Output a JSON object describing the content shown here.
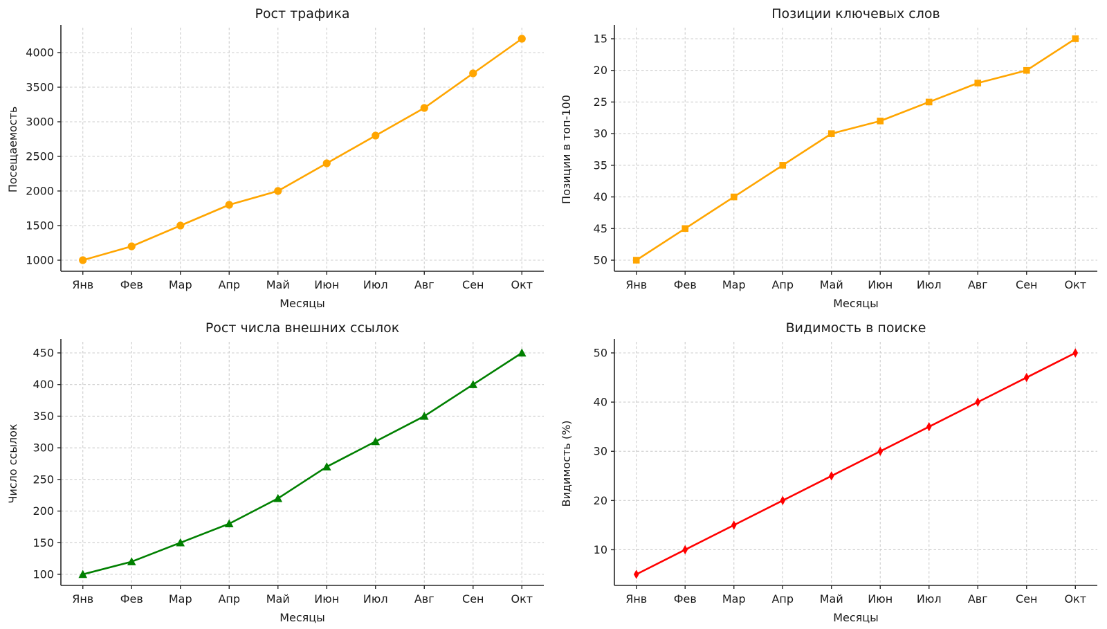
{
  "page": {
    "background": "#ffffff",
    "layout": "2x2-grid"
  },
  "chart_data": [
    {
      "id": "traffic-growth",
      "type": "line",
      "title": "Рост трафика",
      "xlabel": "Месяцы",
      "ylabel": "Посещаемость",
      "categories": [
        "Янв",
        "Фев",
        "Мар",
        "Апр",
        "Май",
        "Июн",
        "Июл",
        "Авг",
        "Сен",
        "Окт"
      ],
      "values": [
        1000,
        1200,
        1500,
        1800,
        2000,
        2400,
        2800,
        3200,
        3700,
        4200
      ],
      "yticks": [
        1000,
        1500,
        2000,
        2500,
        3000,
        3500,
        4000
      ],
      "ylim": [
        840,
        4360
      ],
      "color": "#FFA500",
      "marker": "circle",
      "inverted": false,
      "grid": true,
      "legend": "none"
    },
    {
      "id": "keyword-positions",
      "type": "line",
      "title": "Позиции ключевых слов",
      "xlabel": "Месяцы",
      "ylabel": "Позиции в топ-100",
      "categories": [
        "Янв",
        "Фев",
        "Мар",
        "Апр",
        "Май",
        "Июн",
        "Июл",
        "Авг",
        "Сен",
        "Окт"
      ],
      "values": [
        50,
        45,
        40,
        35,
        30,
        28,
        25,
        22,
        20,
        15
      ],
      "yticks": [
        15,
        20,
        25,
        30,
        35,
        40,
        45,
        50
      ],
      "ylim": [
        13.25,
        51.75
      ],
      "color": "#FFA500",
      "marker": "square",
      "inverted": true,
      "grid": true,
      "legend": "none"
    },
    {
      "id": "backlinks-growth",
      "type": "line",
      "title": "Рост числа внешних ссылок",
      "xlabel": "Месяцы",
      "ylabel": "Число ссылок",
      "categories": [
        "Янв",
        "Фев",
        "Мар",
        "Апр",
        "Май",
        "Июн",
        "Июл",
        "Авг",
        "Сен",
        "Окт"
      ],
      "values": [
        100,
        120,
        150,
        180,
        220,
        270,
        310,
        350,
        400,
        450
      ],
      "yticks": [
        100,
        150,
        200,
        250,
        300,
        350,
        400,
        450
      ],
      "ylim": [
        82.5,
        467.5
      ],
      "color": "#008000",
      "marker": "triangle-up",
      "inverted": false,
      "grid": true,
      "legend": "none"
    },
    {
      "id": "search-visibility",
      "type": "line",
      "title": "Видимость в поиске",
      "xlabel": "Месяцы",
      "ylabel": "Видимость (%)",
      "categories": [
        "Янв",
        "Фев",
        "Мар",
        "Апр",
        "Май",
        "Июн",
        "Июл",
        "Авг",
        "Сен",
        "Окт"
      ],
      "values": [
        5,
        10,
        15,
        20,
        25,
        30,
        35,
        40,
        45,
        50
      ],
      "yticks": [
        10,
        20,
        30,
        40,
        50
      ],
      "ylim": [
        2.75,
        52.25
      ],
      "color": "#FF0000",
      "marker": "thin-diamond",
      "inverted": false,
      "grid": true,
      "legend": "none"
    }
  ],
  "style_tokens": {
    "grid_color": "#cccccc",
    "spine_color": "#262626",
    "text_color": "#1a1a1a"
  }
}
